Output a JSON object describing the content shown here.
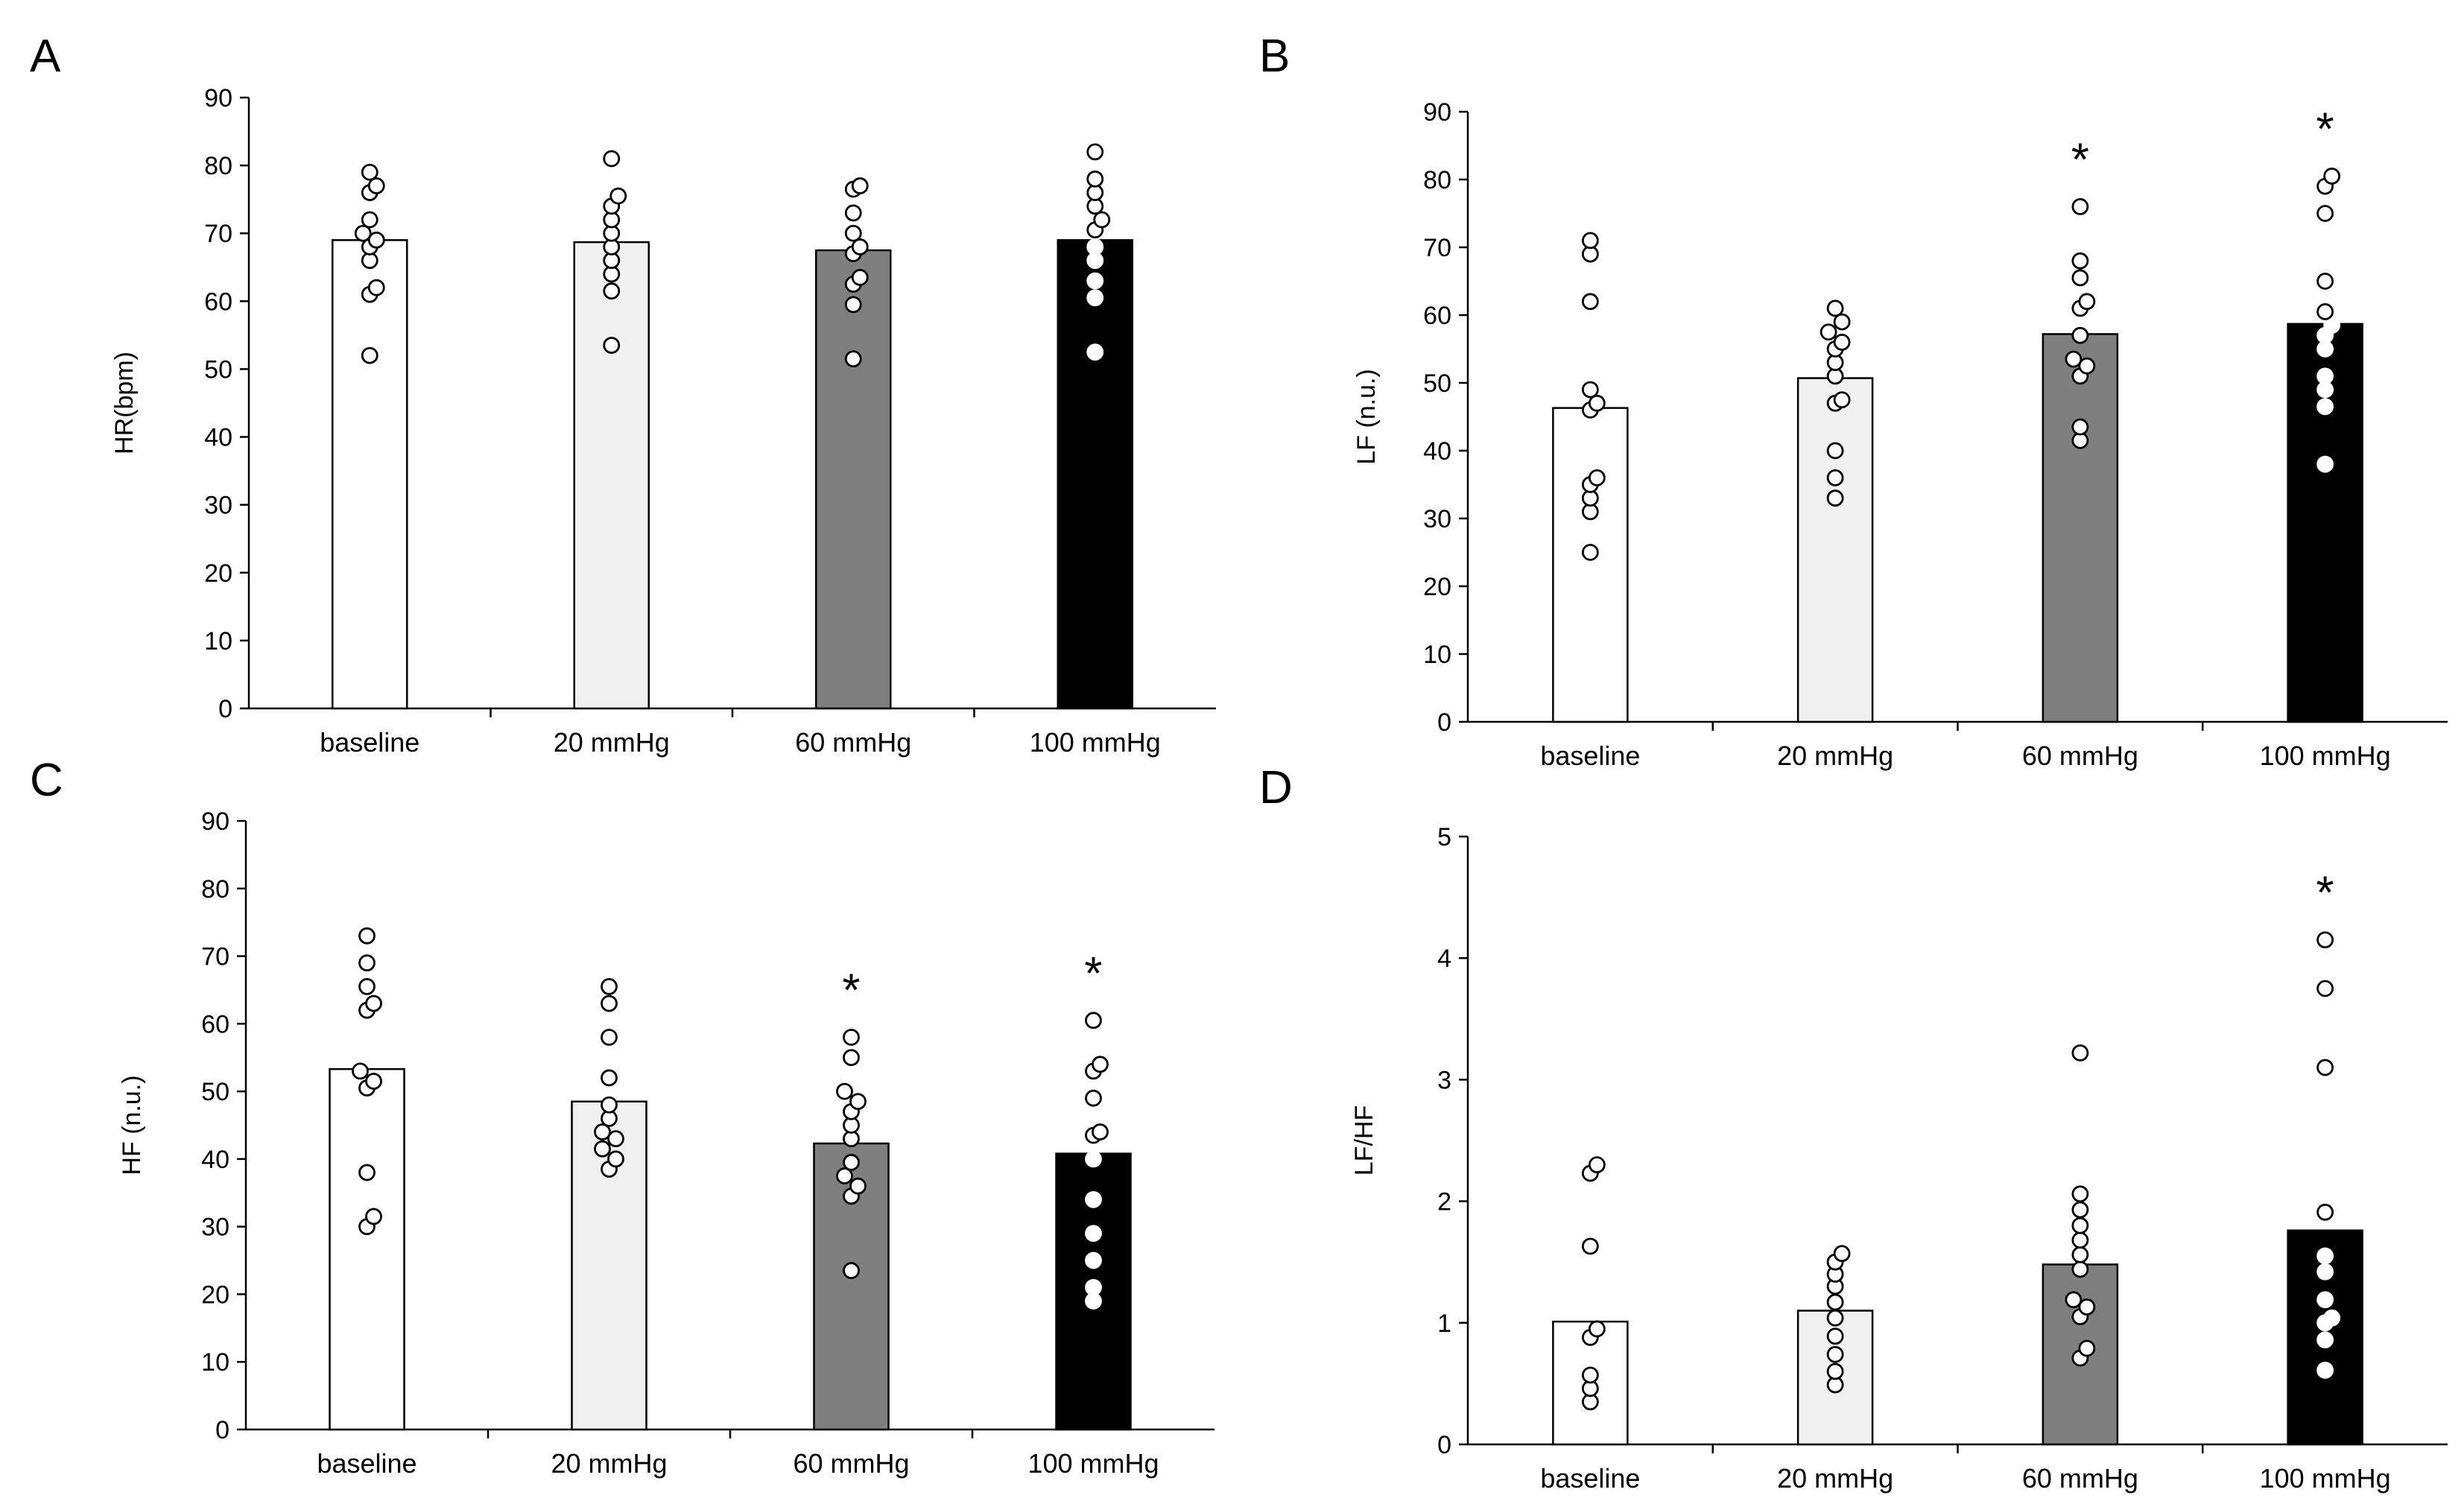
{
  "colors": {
    "bar_fills": [
      "#ffffff",
      "#f0f0f0",
      "#7f7f7f",
      "#000000"
    ],
    "axis": "#000000",
    "point_open_fill": "#ffffff",
    "point_open_stroke": "#000000"
  },
  "chart_data": [
    {
      "panel": "A",
      "type": "bar",
      "ylabel": "HR(bpm)",
      "ylim": [
        0,
        90
      ],
      "yticks": [
        0,
        10,
        20,
        30,
        40,
        50,
        60,
        70,
        80,
        90
      ],
      "categories": [
        "baseline",
        "20 mmHg",
        "60 mmHg",
        "100 mmHg"
      ],
      "values": [
        69,
        68.7,
        67.5,
        69
      ],
      "points": [
        [
          52,
          61,
          62,
          66,
          68,
          69,
          70,
          72,
          76,
          77,
          79
        ],
        [
          53.5,
          61.5,
          64,
          66,
          68,
          70,
          72,
          74,
          75.5,
          81
        ],
        [
          51.5,
          59.5,
          62.5,
          63.5,
          67,
          68,
          70,
          73,
          76.5,
          77
        ],
        [
          52.5,
          60.5,
          63,
          66,
          68,
          70.5,
          72,
          74,
          76,
          78,
          82
        ]
      ],
      "significance": [
        "",
        "",
        "",
        ""
      ]
    },
    {
      "panel": "B",
      "type": "bar",
      "ylabel": "LF (n.u.)",
      "ylim": [
        0,
        90
      ],
      "yticks": [
        0,
        10,
        20,
        30,
        40,
        50,
        60,
        70,
        80,
        90
      ],
      "categories": [
        "baseline",
        "20 mmHg",
        "60 mmHg",
        "100 mmHg"
      ],
      "values": [
        46.3,
        50.7,
        57.2,
        58.7
      ],
      "points": [
        [
          25,
          31,
          33,
          35,
          36,
          46,
          47,
          49,
          62,
          69,
          71
        ],
        [
          33,
          36,
          40,
          47,
          47.5,
          51,
          53,
          55,
          56,
          57.5,
          59,
          61
        ],
        [
          41.5,
          43.5,
          51,
          52.5,
          53.5,
          57,
          61,
          62,
          65.5,
          68,
          76
        ],
        [
          38,
          46.5,
          49,
          51,
          55,
          57,
          58.5,
          60.5,
          65,
          75,
          79,
          80.5
        ]
      ],
      "significance": [
        "",
        "",
        "*",
        "*"
      ]
    },
    {
      "panel": "C",
      "type": "bar",
      "ylabel": "HF (n.u.)",
      "ylim": [
        0,
        90
      ],
      "yticks": [
        0,
        10,
        20,
        30,
        40,
        50,
        60,
        70,
        80,
        90
      ],
      "categories": [
        "baseline",
        "20 mmHg",
        "60 mmHg",
        "100 mmHg"
      ],
      "values": [
        53.3,
        48.5,
        42.3,
        40.8
      ],
      "points": [
        [
          30,
          31.5,
          38,
          50.5,
          51.5,
          53,
          62,
          63,
          65.5,
          69,
          73
        ],
        [
          38.5,
          40,
          41.5,
          43,
          44,
          46,
          48,
          52,
          58,
          63,
          65.5
        ],
        [
          23.5,
          34.5,
          36,
          37.5,
          39.5,
          43,
          45,
          47,
          48.5,
          50,
          55,
          58
        ],
        [
          19,
          21,
          25,
          29,
          34,
          40,
          43.5,
          44,
          49,
          53,
          54,
          60.5
        ]
      ],
      "significance": [
        "",
        "",
        "*",
        "*"
      ]
    },
    {
      "panel": "D",
      "type": "bar",
      "ylabel": "LF/HF",
      "ylim": [
        0,
        5
      ],
      "yticks": [
        0,
        1,
        2,
        3,
        4,
        5
      ],
      "categories": [
        "baseline",
        "20 mmHg",
        "60 mmHg",
        "100 mmHg"
      ],
      "values": [
        1.01,
        1.1,
        1.48,
        1.76
      ],
      "points": [
        [
          0.35,
          0.46,
          0.57,
          0.88,
          0.95,
          1.63,
          2.23,
          2.3
        ],
        [
          0.49,
          0.6,
          0.74,
          0.89,
          1.04,
          1.17,
          1.3,
          1.4,
          1.5,
          1.57
        ],
        [
          0.71,
          0.79,
          1.05,
          1.13,
          1.19,
          1.44,
          1.56,
          1.68,
          1.8,
          1.93,
          2.06,
          3.22
        ],
        [
          0.61,
          0.86,
          1.0,
          1.04,
          1.19,
          1.42,
          1.55,
          1.91,
          3.1,
          3.75,
          4.15
        ]
      ],
      "significance": [
        "",
        "",
        "",
        "*"
      ]
    }
  ]
}
